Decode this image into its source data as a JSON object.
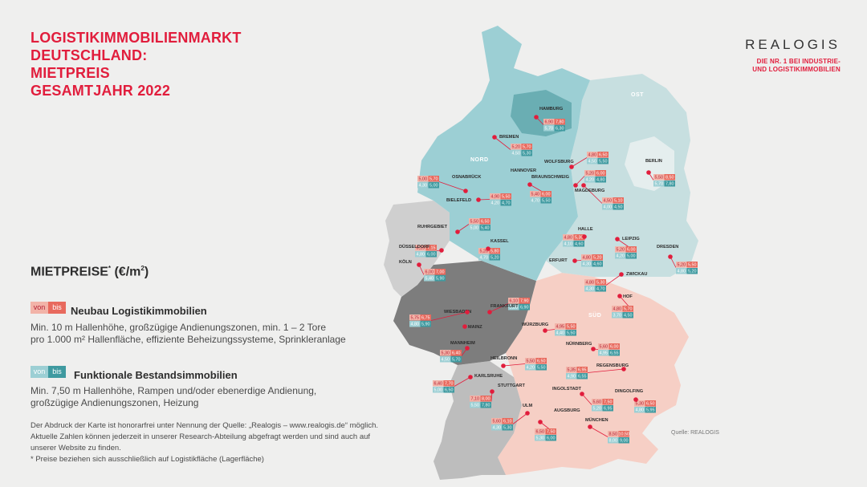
{
  "title": [
    "LOGISTIKIMMOBILIENMARKT",
    "DEUTSCHLAND:",
    "MIETPREIS",
    "GESAMTJAHR 2022"
  ],
  "logo": {
    "word": "REALOGIS",
    "tagline": [
      "DIE NR. 1 BEI INDUSTRIE-",
      "UND LOGISTIKIMMOBILIEN"
    ]
  },
  "legend": {
    "heading": "MIETPREISE",
    "heading_mark": "*",
    "heading_unit": " (€/m",
    "heading_sup": "2",
    "heading_close": ")",
    "chip_from": "von",
    "chip_to": "bis",
    "neubau": {
      "title": "Neubau Logistikimmobilien",
      "desc": [
        "Min. 10 m Hallenhöhe, großzügige Andienungszonen, min. 1 – 2 Tore",
        "pro 1.000 m² Hallenfläche, effiziente Beheizungssysteme, Sprinkleranlage"
      ]
    },
    "bestand": {
      "title": "Funktionale Bestandsimmobilien",
      "desc": [
        "Min. 7,50 m Hallenhöhe, Rampen und/oder ebenerdige Andienung,",
        "großzügige Andienungszonen, Heizung"
      ]
    }
  },
  "footer": [
    "Der Abdruck der Karte ist honorarfrei unter Nennung der Quelle: „Realogis – www.realogis.de“ möglich.",
    "Aktuelle Zahlen können jederzeit in unserer Research-Abteilung abgefragt werden und sind auch auf",
    "unserer Website zu finden.",
    "* Preise beziehen sich ausschließlich auf Logistikfläche (Lagerfläche)"
  ],
  "source": "Quelle: REALOGIS",
  "regions": [
    "NORD",
    "OST",
    "SÜD"
  ],
  "colors": {
    "red": "#e11d3c",
    "nord": "#9ccfd4",
    "nord_dark": "#6aaeb3",
    "ost": "#c7dfe0",
    "west": "#cfcfcf",
    "mitte": "#7d7d7d",
    "sued": "#f6cfc5",
    "suedwest": "#bdbdbd",
    "new_from": "#f2b3a8",
    "new_to": "#e86a5e",
    "old_from": "#9ccfd4",
    "old_to": "#3f9aa0"
  },
  "cities": [
    {
      "name": "HAMBURG",
      "new": [
        "6,90",
        "7,80"
      ],
      "old": [
        "5,70",
        "6,30"
      ]
    },
    {
      "name": "BREMEN",
      "new": [
        "5,20",
        "5,70"
      ],
      "old": [
        "4,50",
        "5,30"
      ]
    },
    {
      "name": "WOLFSBURG",
      "new": [
        "4,80",
        "6,50"
      ],
      "old": [
        "4,50",
        "5,50"
      ]
    },
    {
      "name": "BERLIN",
      "new": [
        "5,50",
        "8,50"
      ],
      "old": [
        "5,70",
        "7,80"
      ]
    },
    {
      "name": "OSNABRÜCK",
      "new": [
        "5,00",
        "5,70"
      ],
      "old": [
        "4,30",
        "5,00"
      ]
    },
    {
      "name": "HANNOVER",
      "new": [
        "5,40",
        "6,00"
      ],
      "old": [
        "4,70",
        "5,50"
      ]
    },
    {
      "name": "BRAUNSCHWEIG",
      "new": [
        "5,20",
        "6,00"
      ],
      "old": [
        "4,20",
        "4,80"
      ]
    },
    {
      "name": "MAGDEBURG",
      "new": [
        "4,50",
        "5,10"
      ],
      "old": [
        "4,00",
        "4,50"
      ]
    },
    {
      "name": "BIELEFELD",
      "new": [
        "4,90",
        "5,50"
      ],
      "old": [
        "4,20",
        "4,70"
      ]
    },
    {
      "name": "RUHRGEBIET",
      "new": [
        "5,50",
        "6,50"
      ],
      "old": [
        "5,00",
        "5,40"
      ]
    },
    {
      "name": "HALLE",
      "new": [
        "4,80",
        "5,30"
      ],
      "old": [
        "4,10",
        "4,60"
      ]
    },
    {
      "name": "LEIPZIG",
      "new": [
        "5,20",
        "6,00"
      ],
      "old": [
        "4,20",
        "5,00"
      ]
    },
    {
      "name": "DRESDEN",
      "new": [
        "5,20",
        "5,50"
      ],
      "old": [
        "4,80",
        "5,20"
      ]
    },
    {
      "name": "KASSEL",
      "new": [
        "5,20",
        "5,80"
      ],
      "old": [
        "4,70",
        "5,20"
      ]
    },
    {
      "name": "DÜSSELDORF",
      "new": [
        "6,15",
        "7,15"
      ],
      "old": [
        "4,80",
        "6,00"
      ]
    },
    {
      "name": "KÖLN",
      "new": [
        "6,00",
        "7,00"
      ],
      "old": [
        "5,40",
        "5,90"
      ]
    },
    {
      "name": "ERFURT",
      "new": [
        "4,80",
        "5,20"
      ],
      "old": [
        "4,30",
        "4,60"
      ]
    },
    {
      "name": "ZWICKAU",
      "new": [
        "4,80",
        "5,30"
      ],
      "old": [
        "4,30",
        "4,70"
      ]
    },
    {
      "name": "HOF",
      "new": [
        "4,80",
        "5,70"
      ],
      "old": [
        "3,70",
        "4,50"
      ]
    },
    {
      "name": "FRANKFURT",
      "new": [
        "6,10",
        "7,90"
      ],
      "old": [
        "5,30",
        "6,90"
      ]
    },
    {
      "name": "WIESBADEN",
      "new": [
        "5,75",
        "6,75"
      ],
      "old": [
        "4,80",
        "5,90"
      ]
    },
    {
      "name": "MAINZ",
      "new": [],
      "old": []
    },
    {
      "name": "WÜRZBURG",
      "new": [
        "4,95",
        "5,50"
      ],
      "old": [
        "4,40",
        "5,50"
      ]
    },
    {
      "name": "MANNHEIM",
      "new": [
        "5,30",
        "6,40"
      ],
      "old": [
        "4,50",
        "5,70"
      ]
    },
    {
      "name": "NÜRNBERG",
      "new": [
        "5,60",
        "6,00"
      ],
      "old": [
        "4,95",
        "6,55"
      ]
    },
    {
      "name": "HEILBRONN",
      "new": [
        "5,50",
        "6,50"
      ],
      "old": [
        "4,20",
        "5,50"
      ]
    },
    {
      "name": "REGENSBURG",
      "new": [
        "5,35",
        "6,95"
      ],
      "old": [
        "4,90",
        "6,55"
      ]
    },
    {
      "name": "KARLSRUHE",
      "new": [
        "6,40",
        "7,70"
      ],
      "old": [
        "5,00",
        "6,50"
      ]
    },
    {
      "name": "STUTTGART",
      "new": [
        "7,10",
        "8,00"
      ],
      "old": [
        "5,50",
        "7,80"
      ]
    },
    {
      "name": "INGOLSTADT",
      "new": [
        "5,60",
        "7,50"
      ],
      "old": [
        "5,20",
        "6,95"
      ]
    },
    {
      "name": "DINGOLFING",
      "new": [
        "5,30",
        "6,50"
      ],
      "old": [
        "4,80",
        "5,95"
      ]
    },
    {
      "name": "ULM",
      "new": [
        "5,60",
        "6,10"
      ],
      "old": [
        "4,30",
        "5,30"
      ]
    },
    {
      "name": "AUGSBURG",
      "new": [
        "6,50",
        "7,50"
      ],
      "old": [
        "5,30",
        "6,00"
      ]
    },
    {
      "name": "MÜNCHEN",
      "new": [
        "8,50",
        "10,50"
      ],
      "old": [
        "8,00",
        "9,00"
      ]
    }
  ]
}
